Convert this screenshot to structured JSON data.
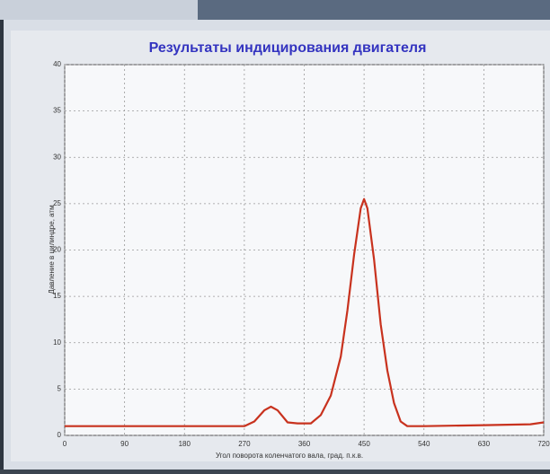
{
  "chart_data": {
    "type": "line",
    "title": "Результаты индицирования двигателя",
    "x_label": "Угол поворота коленчатого вала, град. п.к.в.",
    "y_label": "Давление в цилиндре, атм",
    "x": [
      0,
      270,
      285,
      300,
      310,
      320,
      335,
      350,
      370,
      385,
      400,
      415,
      425,
      435,
      445,
      450,
      455,
      465,
      475,
      485,
      495,
      505,
      515,
      540,
      630,
      700,
      720
    ],
    "values": [
      1,
      1,
      1.5,
      2.7,
      3.1,
      2.7,
      1.4,
      1.3,
      1.3,
      2.2,
      4.3,
      8.5,
      13.5,
      19.5,
      24.5,
      25.5,
      24.5,
      19,
      12,
      7,
      3.5,
      1.5,
      1,
      1,
      1.1,
      1.2,
      1.4
    ],
    "color": "#c8321e",
    "xlim": [
      0,
      720
    ],
    "xticks": [
      0,
      90,
      180,
      270,
      360,
      450,
      540,
      630,
      720
    ],
    "ylim": [
      0,
      40
    ],
    "yticks": [
      0,
      5,
      10,
      15,
      20,
      25,
      30,
      35,
      40
    ],
    "grid": true
  }
}
